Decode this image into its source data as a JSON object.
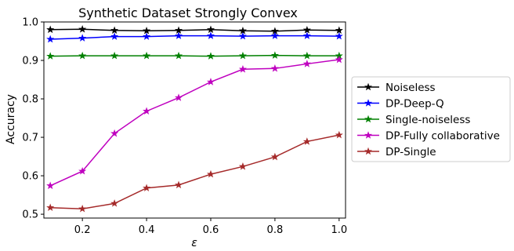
{
  "chart_data": {
    "type": "line",
    "title": "Synthetic Dataset Strongly Convex",
    "xlabel": "ε",
    "ylabel": "Accuracy",
    "xlim": [
      0.08,
      1.02
    ],
    "ylim": [
      0.49,
      1.0
    ],
    "xticks": [
      0.2,
      0.4,
      0.6,
      0.8,
      1.0
    ],
    "xtick_labels": [
      "0.2",
      "0.4",
      "0.6",
      "0.8",
      "1.0"
    ],
    "yticks": [
      0.5,
      0.6,
      0.7,
      0.8,
      0.9,
      1.0
    ],
    "ytick_labels": [
      "0.5",
      "0.6",
      "0.7",
      "0.8",
      "0.9",
      "1.0"
    ],
    "grid": false,
    "legend_position": "center-right, outside plot",
    "x": [
      0.1,
      0.2,
      0.3,
      0.4,
      0.5,
      0.6,
      0.7,
      0.8,
      0.9,
      1.0
    ],
    "series": [
      {
        "name": "Noiseless",
        "color": "#000000",
        "marker": "star",
        "values": [
          0.98,
          0.981,
          0.978,
          0.977,
          0.978,
          0.98,
          0.977,
          0.976,
          0.979,
          0.978
        ]
      },
      {
        "name": "DP-Deep-Q",
        "color": "#0000ff",
        "marker": "star",
        "values": [
          0.955,
          0.958,
          0.962,
          0.962,
          0.964,
          0.964,
          0.963,
          0.964,
          0.964,
          0.963
        ]
      },
      {
        "name": "Single-noiseless",
        "color": "#008000",
        "marker": "star",
        "values": [
          0.911,
          0.912,
          0.912,
          0.912,
          0.912,
          0.911,
          0.912,
          0.913,
          0.912,
          0.912
        ]
      },
      {
        "name": "DP-Fully collaborative",
        "color": "#bf00bf",
        "marker": "star",
        "values": [
          0.574,
          0.612,
          0.71,
          0.768,
          0.803,
          0.844,
          0.877,
          0.879,
          0.891,
          0.902
        ]
      },
      {
        "name": "DP-Single",
        "color": "#a52a2a",
        "marker": "star",
        "values": [
          0.517,
          0.514,
          0.528,
          0.568,
          0.576,
          0.604,
          0.624,
          0.649,
          0.689,
          0.706
        ]
      }
    ]
  }
}
